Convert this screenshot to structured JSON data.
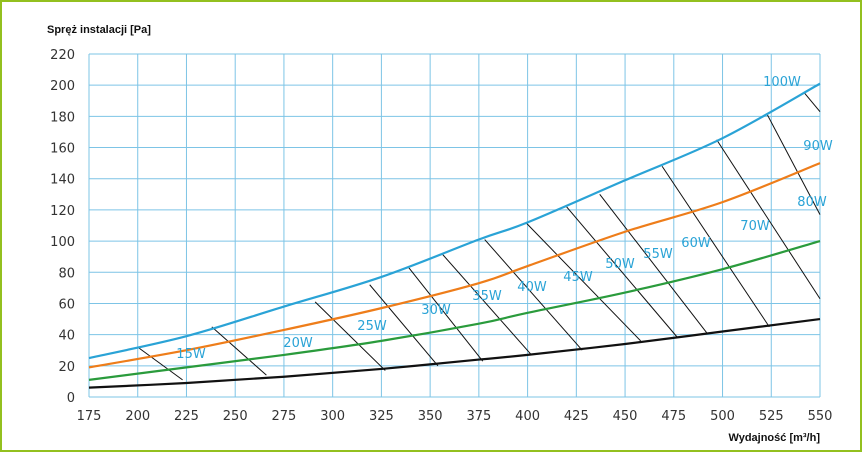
{
  "chart_data": {
    "type": "line",
    "title": "",
    "ylabel": "Spręż instalacji [Pa]",
    "xlabel": "Wydajność [m³/h]",
    "xlim": [
      175,
      550
    ],
    "ylim": [
      0,
      220
    ],
    "x_ticks": [
      175,
      200,
      225,
      250,
      275,
      300,
      325,
      350,
      375,
      400,
      425,
      450,
      475,
      500,
      525,
      550
    ],
    "y_ticks": [
      0,
      20,
      40,
      60,
      80,
      100,
      120,
      140,
      160,
      180,
      200,
      220
    ],
    "grid": true,
    "series": [
      {
        "color": "#2aa3d6",
        "points": [
          [
            175,
            25
          ],
          [
            225,
            39
          ],
          [
            275,
            58
          ],
          [
            325,
            77
          ],
          [
            375,
            101
          ],
          [
            400,
            112
          ],
          [
            450,
            139
          ],
          [
            500,
            166
          ],
          [
            550,
            201
          ]
        ]
      },
      {
        "color": "#ee7d1a",
        "points": [
          [
            175,
            19
          ],
          [
            225,
            30
          ],
          [
            275,
            43
          ],
          [
            325,
            57
          ],
          [
            375,
            73
          ],
          [
            400,
            84
          ],
          [
            450,
            106
          ],
          [
            500,
            125
          ],
          [
            550,
            150
          ]
        ]
      },
      {
        "color": "#2a9b3c",
        "points": [
          [
            175,
            11
          ],
          [
            225,
            19
          ],
          [
            275,
            27
          ],
          [
            325,
            36
          ],
          [
            375,
            47
          ],
          [
            400,
            54
          ],
          [
            450,
            67
          ],
          [
            500,
            82
          ],
          [
            550,
            100
          ]
        ]
      },
      {
        "color": "#111111",
        "points": [
          [
            175,
            6
          ],
          [
            225,
            9
          ],
          [
            275,
            13
          ],
          [
            325,
            18
          ],
          [
            375,
            24
          ],
          [
            400,
            27
          ],
          [
            450,
            34
          ],
          [
            500,
            42
          ],
          [
            550,
            50
          ]
        ]
      }
    ],
    "power_lines": [
      {
        "label": "15W",
        "from": [
          200,
          32
        ],
        "to": [
          223,
          11
        ]
      },
      {
        "label": "20W",
        "from": [
          238,
          45
        ],
        "to": [
          266,
          14
        ]
      },
      {
        "label": "25W",
        "from": [
          291,
          61
        ],
        "to": [
          327,
          17
        ]
      },
      {
        "label": "30W",
        "from": [
          319,
          72
        ],
        "to": [
          354,
          20
        ]
      },
      {
        "label": "35W",
        "from": [
          339,
          83
        ],
        "to": [
          377,
          23
        ]
      },
      {
        "label": "40W",
        "from": [
          356,
          92
        ],
        "to": [
          402,
          27
        ]
      },
      {
        "label": "45W",
        "from": [
          378,
          101
        ],
        "to": [
          428,
          30
        ]
      },
      {
        "label": "50W",
        "from": [
          399,
          112
        ],
        "to": [
          458,
          36
        ]
      },
      {
        "label": "55W",
        "from": [
          420,
          122
        ],
        "to": [
          477,
          38
        ]
      },
      {
        "label": "60W",
        "from": [
          437,
          130
        ],
        "to": [
          492,
          41
        ]
      },
      {
        "label": "70W",
        "from": [
          469,
          148
        ],
        "to": [
          524,
          45
        ]
      },
      {
        "label": "80W",
        "from": [
          497,
          165
        ],
        "to": [
          550,
          63
        ]
      },
      {
        "label": "90W",
        "from": [
          523,
          181
        ],
        "to": [
          550,
          117
        ]
      },
      {
        "label": "100W",
        "from": [
          542,
          195
        ],
        "to": [
          550,
          183
        ]
      }
    ],
    "power_line_color": "#111111"
  }
}
